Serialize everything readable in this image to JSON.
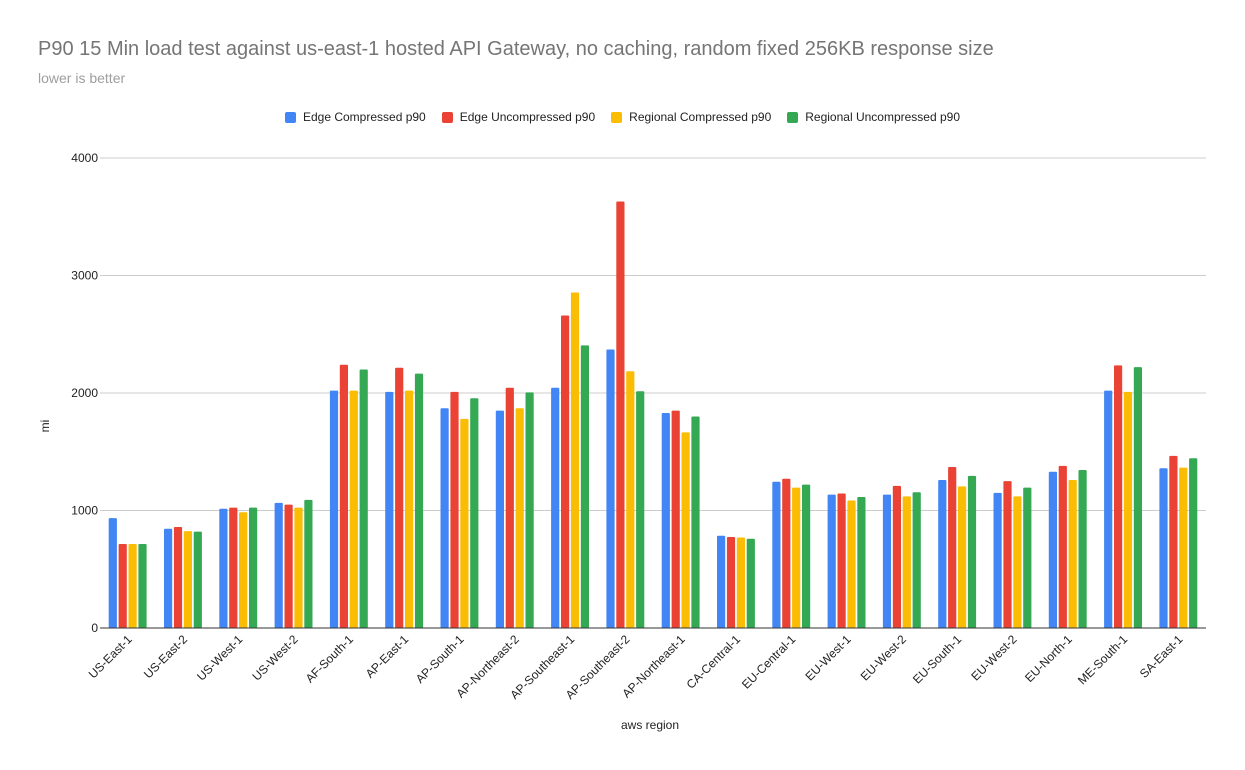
{
  "chart_data": {
    "type": "bar",
    "title": "P90 15 Min load test against us-east-1 hosted API Gateway, no caching, random fixed 256KB response size",
    "subtitle": "lower is better",
    "xlabel": "aws region",
    "ylabel": "mi",
    "ylim": [
      0,
      4000
    ],
    "yticks": [
      0,
      1000,
      2000,
      3000,
      4000
    ],
    "grid": true,
    "legend_position": "top",
    "categories": [
      "US-East-1",
      "US-East-2",
      "US-West-1",
      "US-West-2",
      "AF-South-1",
      "AP-East-1",
      "AP-South-1",
      "AP-Northeast-2",
      "AP-Southeast-1",
      "AP-Southeast-2",
      "AP-Northeast-1",
      "CA-Central-1",
      "EU-Central-1",
      "EU-West-1",
      "EU-West-2",
      "EU-South-1",
      "EU-West-2",
      "EU-North-1",
      "ME-South-1",
      "SA-East-1"
    ],
    "series": [
      {
        "name": "Edge Compressed p90",
        "color": "#4285F4",
        "values": [
          935,
          845,
          1015,
          1065,
          2020,
          2010,
          1870,
          1850,
          2045,
          2370,
          1830,
          785,
          1245,
          1135,
          1135,
          1260,
          1150,
          1330,
          2020,
          1360
        ]
      },
      {
        "name": "Edge Uncompressed p90",
        "color": "#EA4335",
        "values": [
          715,
          860,
          1025,
          1050,
          2240,
          2215,
          2010,
          2045,
          2660,
          3630,
          1850,
          775,
          1270,
          1145,
          1210,
          1370,
          1250,
          1380,
          2235,
          1465
        ]
      },
      {
        "name": "Regional Compressed p90",
        "color": "#FBBC04",
        "values": [
          715,
          825,
          985,
          1025,
          2020,
          2020,
          1780,
          1870,
          2855,
          2185,
          1665,
          770,
          1195,
          1085,
          1120,
          1205,
          1120,
          1260,
          2010,
          1365
        ]
      },
      {
        "name": "Regional Uncompressed p90",
        "color": "#34A853",
        "values": [
          715,
          820,
          1025,
          1090,
          2200,
          2165,
          1955,
          2005,
          2405,
          2015,
          1800,
          760,
          1220,
          1115,
          1155,
          1295,
          1195,
          1345,
          2220,
          1445
        ]
      }
    ]
  }
}
